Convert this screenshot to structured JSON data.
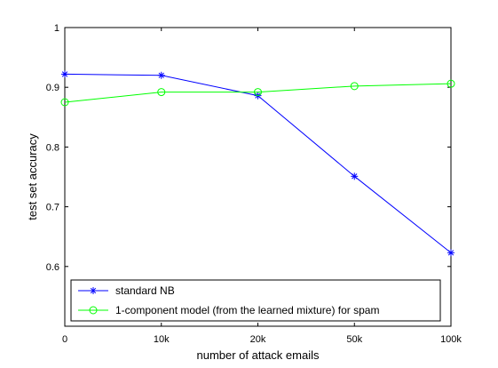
{
  "chart_data": {
    "type": "line",
    "title": "",
    "xlabel": "number of attack emails",
    "ylabel": "test set accuracy",
    "categories": [
      "0",
      "10k",
      "20k",
      "50k",
      "100k"
    ],
    "ylim": [
      0.5,
      1.0
    ],
    "yticks": [
      "0.6",
      "0.7",
      "0.8",
      "0.9",
      "1"
    ],
    "ytick_values": [
      0.6,
      0.7,
      0.8,
      0.9,
      1.0
    ],
    "grid": false,
    "legend_position": "bottom",
    "series": [
      {
        "name": "standard NB",
        "color": "#0000ff",
        "marker": "star",
        "values": [
          0.922,
          0.92,
          0.886,
          0.751,
          0.623
        ]
      },
      {
        "name": "1-component model (from the learned mixture) for spam",
        "color": "#00ff00",
        "marker": "circle",
        "values": [
          0.875,
          0.892,
          0.892,
          0.902,
          0.906
        ]
      }
    ]
  }
}
